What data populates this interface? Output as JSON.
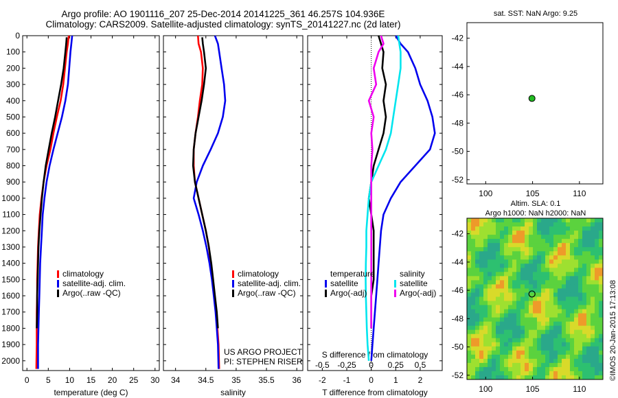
{
  "header": {
    "title_line1": "Argo profile: AO 1901116_207 25-Dec-2014 20141225_361 46.257S 104.936E",
    "title_line2": "Climatology: CARS2009. Satellite-adjusted climatology: synTS_20141227.nc (2d later)"
  },
  "colors": {
    "climatology": "#ff0000",
    "satellite": "#0000ee",
    "argo": "#000000",
    "satellite_salinity": "#00e5ee",
    "argo_salinity": "#ee00ee",
    "float_marker": "#22bb22"
  },
  "chart_data": [
    {
      "type": "line",
      "name": "temperature-profile",
      "xlabel": "temperature (deg C)",
      "xlim": [
        -1,
        31
      ],
      "ylim": [
        2060,
        0
      ],
      "xticks": [
        0,
        5,
        10,
        15,
        20,
        25,
        30
      ],
      "yticks": [
        0,
        100,
        200,
        300,
        400,
        500,
        600,
        700,
        800,
        900,
        1000,
        1100,
        1200,
        1300,
        1400,
        1500,
        1600,
        1700,
        1800,
        1900,
        2000
      ],
      "legend": [
        "climatology",
        "satellite-adj. clim.",
        "Argo(..raw -QC)"
      ],
      "legend_position": "lower-center",
      "series": [
        {
          "name": "climatology",
          "color": "#ff0000",
          "x": [
            9.8,
            9.6,
            9.3,
            8.9,
            8.5,
            7.9,
            7.0,
            6.2,
            5.5,
            4.6,
            3.9,
            3.4,
            3.0,
            2.8,
            2.6,
            2.5,
            2.4,
            2.4,
            2.3,
            2.3,
            2.3,
            2.2
          ],
          "y": [
            0,
            50,
            100,
            200,
            300,
            400,
            500,
            600,
            700,
            800,
            900,
            1000,
            1100,
            1200,
            1300,
            1400,
            1500,
            1600,
            1700,
            1800,
            1900,
            2050
          ]
        },
        {
          "name": "satellite-adj. clim.",
          "color": "#0000ee",
          "x": [
            10.6,
            10.4,
            10.2,
            9.9,
            9.6,
            9.0,
            8.2,
            7.2,
            6.2,
            5.3,
            4.6,
            4.1,
            3.7,
            3.5,
            3.3,
            3.1,
            3.0,
            2.9,
            2.8,
            2.7,
            2.6,
            2.6
          ],
          "y": [
            0,
            50,
            100,
            200,
            300,
            400,
            500,
            600,
            700,
            800,
            900,
            1000,
            1100,
            1200,
            1300,
            1400,
            1500,
            1600,
            1700,
            1800,
            1900,
            2050
          ]
        },
        {
          "name": "Argo(..raw -QC)",
          "color": "#000000",
          "x": [
            9.3,
            9.2,
            9.0,
            8.6,
            8.0,
            7.3,
            6.6,
            5.8,
            5.1,
            4.4,
            3.9,
            3.5,
            3.2,
            2.9,
            2.7,
            2.6,
            2.5,
            2.4,
            2.4,
            2.3
          ],
          "y": [
            10,
            50,
            100,
            200,
            300,
            400,
            500,
            600,
            700,
            800,
            900,
            1000,
            1100,
            1200,
            1300,
            1400,
            1500,
            1600,
            1700,
            1800
          ]
        }
      ]
    },
    {
      "type": "line",
      "name": "salinity-profile",
      "xlabel": "salinity",
      "xlim": [
        33.8,
        36.1
      ],
      "ylim": [
        2060,
        0
      ],
      "xticks": [
        34,
        34.5,
        35,
        35.5,
        36
      ],
      "legend": [
        "climatology",
        "satellite-adj. clim.",
        "Argo(..raw -QC)"
      ],
      "legend_position": "lower-right",
      "annotation": [
        "US ARGO PROJECT",
        "PI: STEPHEN RISER"
      ],
      "series": [
        {
          "name": "climatology",
          "color": "#ff0000",
          "x": [
            34.37,
            34.38,
            34.42,
            34.45,
            34.44,
            34.4,
            34.37,
            34.33,
            34.3,
            34.3,
            34.32,
            34.38,
            34.44,
            34.5,
            34.55,
            34.58,
            34.61,
            34.64,
            34.67,
            34.69,
            34.71,
            34.72
          ],
          "y": [
            0,
            50,
            100,
            200,
            300,
            400,
            500,
            600,
            700,
            800,
            900,
            1000,
            1100,
            1200,
            1300,
            1400,
            1500,
            1600,
            1700,
            1800,
            1900,
            2050
          ]
        },
        {
          "name": "satellite-adj. clim.",
          "color": "#0000ee",
          "x": [
            34.65,
            34.7,
            34.72,
            34.76,
            34.8,
            34.82,
            34.78,
            34.7,
            34.58,
            34.45,
            34.35,
            34.3,
            34.38,
            34.45,
            34.51,
            34.56,
            34.6,
            34.63,
            34.66,
            34.68,
            34.7,
            34.71
          ],
          "y": [
            0,
            50,
            100,
            200,
            300,
            400,
            500,
            600,
            700,
            800,
            900,
            1000,
            1100,
            1200,
            1300,
            1400,
            1500,
            1600,
            1700,
            1800,
            1900,
            2050
          ]
        },
        {
          "name": "Argo(..raw -QC)",
          "color": "#000000",
          "x": [
            34.44,
            34.45,
            34.47,
            34.5,
            34.47,
            34.43,
            34.38,
            34.33,
            34.3,
            34.29,
            34.32,
            34.38,
            34.44,
            34.5,
            34.55,
            34.59,
            34.62,
            34.65,
            34.68,
            34.7
          ],
          "y": [
            10,
            50,
            100,
            200,
            300,
            400,
            500,
            600,
            700,
            800,
            900,
            1000,
            1100,
            1200,
            1300,
            1400,
            1500,
            1600,
            1700,
            1800
          ]
        }
      ]
    },
    {
      "type": "line",
      "name": "difference-profile",
      "xlabel": "T difference from climatology",
      "xlabel_top": "S difference from climatology",
      "xlim": [
        -2.6,
        2.9
      ],
      "ylim": [
        2060,
        0
      ],
      "xticks": [
        -2,
        -1,
        0,
        1,
        2
      ],
      "xticklabels_top": [
        "-0.5",
        "-0.25",
        "0",
        "0.25",
        "0.5"
      ],
      "legend_temperature": {
        "title": "temperature",
        "items": [
          "satellite",
          "Argo(-adj)"
        ]
      },
      "legend_salinity": {
        "title": "salinity",
        "items": [
          "satellite",
          "Argo(-adj)"
        ]
      },
      "series": [
        {
          "name": "temperature satellite",
          "color": "#0000ee",
          "x": [
            1.0,
            1.2,
            1.5,
            1.8,
            2.0,
            2.3,
            2.5,
            2.6,
            2.4,
            1.8,
            1.2,
            0.8,
            0.5,
            0.4,
            0.35,
            0.3,
            0.25,
            0.2,
            0.15,
            0.1,
            0.05,
            0.0
          ],
          "y": [
            0,
            50,
            100,
            200,
            300,
            400,
            500,
            600,
            700,
            800,
            900,
            1000,
            1100,
            1200,
            1300,
            1400,
            1500,
            1600,
            1700,
            1800,
            1900,
            2000
          ]
        },
        {
          "name": "temperature Argo(-adj)",
          "color": "#000000",
          "x": [
            0.3,
            0.4,
            0.5,
            0.45,
            0.6,
            0.5,
            0.6,
            0.5,
            0.3,
            0.1,
            0.0,
            -0.1,
            0.0,
            0.1,
            0.1,
            0.1,
            0.1,
            0.0,
            0.0,
            0.0
          ],
          "y": [
            0,
            50,
            100,
            200,
            300,
            400,
            500,
            600,
            700,
            800,
            900,
            1000,
            1100,
            1200,
            1300,
            1400,
            1500,
            1600,
            1700,
            1800
          ]
        },
        {
          "name": "salinity satellite",
          "color": "#00e5ee",
          "x": [
            1.1,
            1.15,
            1.2,
            1.2,
            1.1,
            1.0,
            0.9,
            0.8,
            0.6,
            0.3,
            0.0,
            -0.1,
            -0.15,
            -0.2,
            -0.2,
            -0.22,
            -0.23,
            -0.22,
            -0.2,
            -0.18,
            -0.15,
            -0.1
          ],
          "y": [
            0,
            50,
            100,
            200,
            300,
            400,
            500,
            600,
            700,
            800,
            900,
            1000,
            1100,
            1200,
            1300,
            1400,
            1500,
            1600,
            1700,
            1800,
            1900,
            2000
          ]
        },
        {
          "name": "salinity Argo(-adj)",
          "color": "#ee00ee",
          "x": [
            0.4,
            0.5,
            0.3,
            0.1,
            0.2,
            -0.1,
            0.1,
            0.0,
            0.05,
            0.0,
            0.0,
            0.0,
            0.0,
            0.0,
            0.0,
            0.0,
            0.0,
            0.0,
            0.0,
            0.0
          ],
          "y": [
            0,
            50,
            100,
            200,
            300,
            400,
            500,
            600,
            700,
            800,
            900,
            1000,
            1100,
            1200,
            1300,
            1400,
            1500,
            1600,
            1700,
            1800
          ]
        }
      ]
    },
    {
      "type": "scatter",
      "name": "sst-map",
      "title": "sat. SST: NaN Argo: 9.25",
      "xlim": [
        98,
        112.5
      ],
      "ylim": [
        -52.3,
        -40.9
      ],
      "xticks": [
        100,
        105,
        110
      ],
      "yticks": [
        -42,
        -44,
        -46,
        -48,
        -50,
        -52
      ],
      "points": [
        {
          "x": 104.936,
          "y": -46.257
        }
      ]
    },
    {
      "type": "heatmap",
      "name": "sla-map",
      "title_line1": "Altim. SLA: 0.1",
      "title_line2": "Argo h1000: NaN h2000: NaN",
      "xlim": [
        98,
        112.5
      ],
      "ylim": [
        -52.3,
        -40.9
      ],
      "xticks": [
        100,
        105,
        110
      ],
      "yticks": [
        -42,
        -44,
        -46,
        -48,
        -50,
        -52
      ],
      "points": [
        {
          "x": 104.936,
          "y": -46.257
        }
      ]
    }
  ],
  "footer": {
    "credit": "©IMOS 20-Jan-2015 17:13:08"
  }
}
